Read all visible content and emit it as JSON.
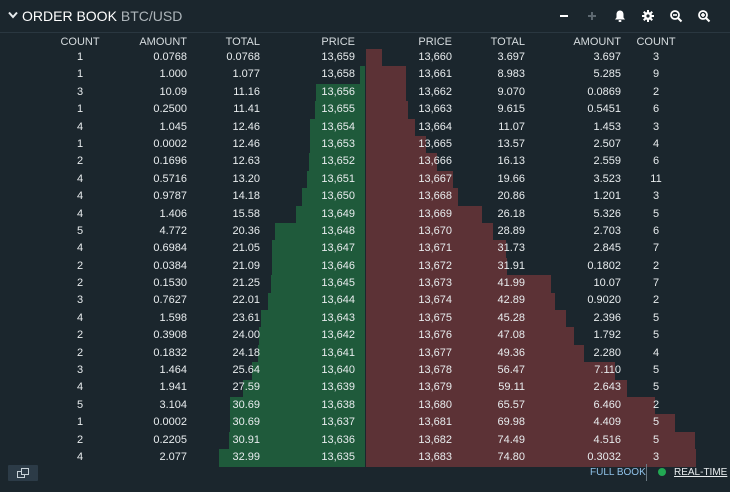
{
  "header": {
    "title": "ORDER BOOK",
    "symbol": "BTC/USD"
  },
  "columns": {
    "bids": [
      "COUNT",
      "AMOUNT",
      "TOTAL",
      "PRICE"
    ],
    "asks": [
      "PRICE",
      "TOTAL",
      "AMOUNT",
      "COUNT"
    ]
  },
  "bids": [
    [
      "1",
      "0.0768",
      "0.0768",
      "13,659"
    ],
    [
      "1",
      "1.000",
      "1.077",
      "13,658"
    ],
    [
      "3",
      "10.09",
      "11.16",
      "13,656"
    ],
    [
      "1",
      "0.2500",
      "11.41",
      "13,655"
    ],
    [
      "4",
      "1.045",
      "12.46",
      "13,654"
    ],
    [
      "1",
      "0.0002",
      "12.46",
      "13,653"
    ],
    [
      "2",
      "0.1696",
      "12.63",
      "13,652"
    ],
    [
      "4",
      "0.5716",
      "13.20",
      "13,651"
    ],
    [
      "4",
      "0.9787",
      "14.18",
      "13,650"
    ],
    [
      "4",
      "1.406",
      "15.58",
      "13,649"
    ],
    [
      "5",
      "4.772",
      "20.36",
      "13,648"
    ],
    [
      "4",
      "0.6984",
      "21.05",
      "13,647"
    ],
    [
      "2",
      "0.0384",
      "21.09",
      "13,646"
    ],
    [
      "2",
      "0.1530",
      "21.25",
      "13,645"
    ],
    [
      "3",
      "0.7627",
      "22.01",
      "13,644"
    ],
    [
      "4",
      "1.598",
      "23.61",
      "13,643"
    ],
    [
      "2",
      "0.3908",
      "24.00",
      "13,642"
    ],
    [
      "2",
      "0.1832",
      "24.18",
      "13,641"
    ],
    [
      "3",
      "1.464",
      "25.64",
      "13,640"
    ],
    [
      "4",
      "1.941",
      "27.59",
      "13,639"
    ],
    [
      "5",
      "3.104",
      "30.69",
      "13,638"
    ],
    [
      "1",
      "0.0002",
      "30.69",
      "13,637"
    ],
    [
      "2",
      "0.2205",
      "30.91",
      "13,636"
    ],
    [
      "4",
      "2.077",
      "32.99",
      "13,635"
    ]
  ],
  "asks": [
    [
      "13,660",
      "3.697",
      "3.697",
      "3"
    ],
    [
      "13,661",
      "8.983",
      "5.285",
      "9"
    ],
    [
      "13,662",
      "9.070",
      "0.0869",
      "2"
    ],
    [
      "13,663",
      "9.615",
      "0.5451",
      "6"
    ],
    [
      "13,664",
      "11.07",
      "1.453",
      "3"
    ],
    [
      "13,665",
      "13.57",
      "2.507",
      "4"
    ],
    [
      "13,666",
      "16.13",
      "2.559",
      "6"
    ],
    [
      "13,667",
      "19.66",
      "3.523",
      "11"
    ],
    [
      "13,668",
      "20.86",
      "1.201",
      "3"
    ],
    [
      "13,669",
      "26.18",
      "5.326",
      "5"
    ],
    [
      "13,670",
      "28.89",
      "2.703",
      "6"
    ],
    [
      "13,671",
      "31.73",
      "2.845",
      "7"
    ],
    [
      "13,672",
      "31.91",
      "0.1802",
      "2"
    ],
    [
      "13,673",
      "41.99",
      "10.07",
      "7"
    ],
    [
      "13,674",
      "42.89",
      "0.9020",
      "2"
    ],
    [
      "13,675",
      "45.28",
      "2.396",
      "5"
    ],
    [
      "13,676",
      "47.08",
      "1.792",
      "5"
    ],
    [
      "13,677",
      "49.36",
      "2.280",
      "4"
    ],
    [
      "13,678",
      "56.47",
      "7.110",
      "5"
    ],
    [
      "13,679",
      "59.11",
      "2.643",
      "5"
    ],
    [
      "13,680",
      "65.57",
      "6.460",
      "2"
    ],
    [
      "13,681",
      "69.98",
      "4.409",
      "5"
    ],
    [
      "13,682",
      "74.49",
      "4.516",
      "5"
    ],
    [
      "13,683",
      "74.80",
      "0.3032",
      "3"
    ]
  ],
  "depth_scale_max": 74.8,
  "footer": {
    "full_book": "FULL BOOK",
    "realtime": "REAL-TIME"
  },
  "colors": {
    "bid_bar": "#1f5a3b",
    "ask_bar": "#5c3236",
    "realtime_dot": "#22a853",
    "link": "#8fc1e8"
  },
  "icons": [
    "chevron-down-icon",
    "minus-icon",
    "plus-icon",
    "bell-icon",
    "gear-icon",
    "zoom-out-icon",
    "zoom-in-icon",
    "popout-icon"
  ]
}
